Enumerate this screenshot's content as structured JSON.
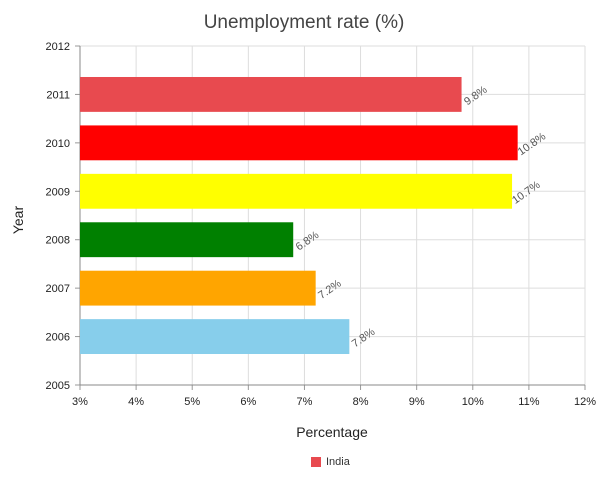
{
  "chart_data": {
    "type": "bar",
    "orientation": "horizontal",
    "title": "Unemployment rate (%)",
    "xlabel": "Percentage",
    "ylabel": "Year",
    "xlim": [
      3,
      12
    ],
    "x_ticks": [
      "3%",
      "4%",
      "5%",
      "6%",
      "7%",
      "8%",
      "9%",
      "10%",
      "11%",
      "12%"
    ],
    "ylim": [
      2005,
      2012
    ],
    "y_ticks": [
      "2005",
      "2006",
      "2007",
      "2008",
      "2009",
      "2010",
      "2011",
      "2012"
    ],
    "categories": [
      "2006",
      "2007",
      "2008",
      "2009",
      "2010",
      "2011"
    ],
    "values": [
      7.8,
      7.2,
      6.8,
      10.7,
      10.8,
      9.8
    ],
    "data_labels": [
      "7.8%",
      "7.2%",
      "6.8%",
      "10.7%",
      "10.8%",
      "9.8%"
    ],
    "bar_colors": [
      "#87CEEB",
      "#FFA500",
      "#008000",
      "#FFFF00",
      "#FF0000",
      "#E84A4F"
    ],
    "series": [
      {
        "name": "India",
        "values": [
          7.8,
          7.2,
          6.8,
          10.7,
          10.8,
          9.8
        ]
      }
    ],
    "legend": {
      "position": "bottom-center",
      "color": "#E84A4F"
    },
    "grid": true
  }
}
